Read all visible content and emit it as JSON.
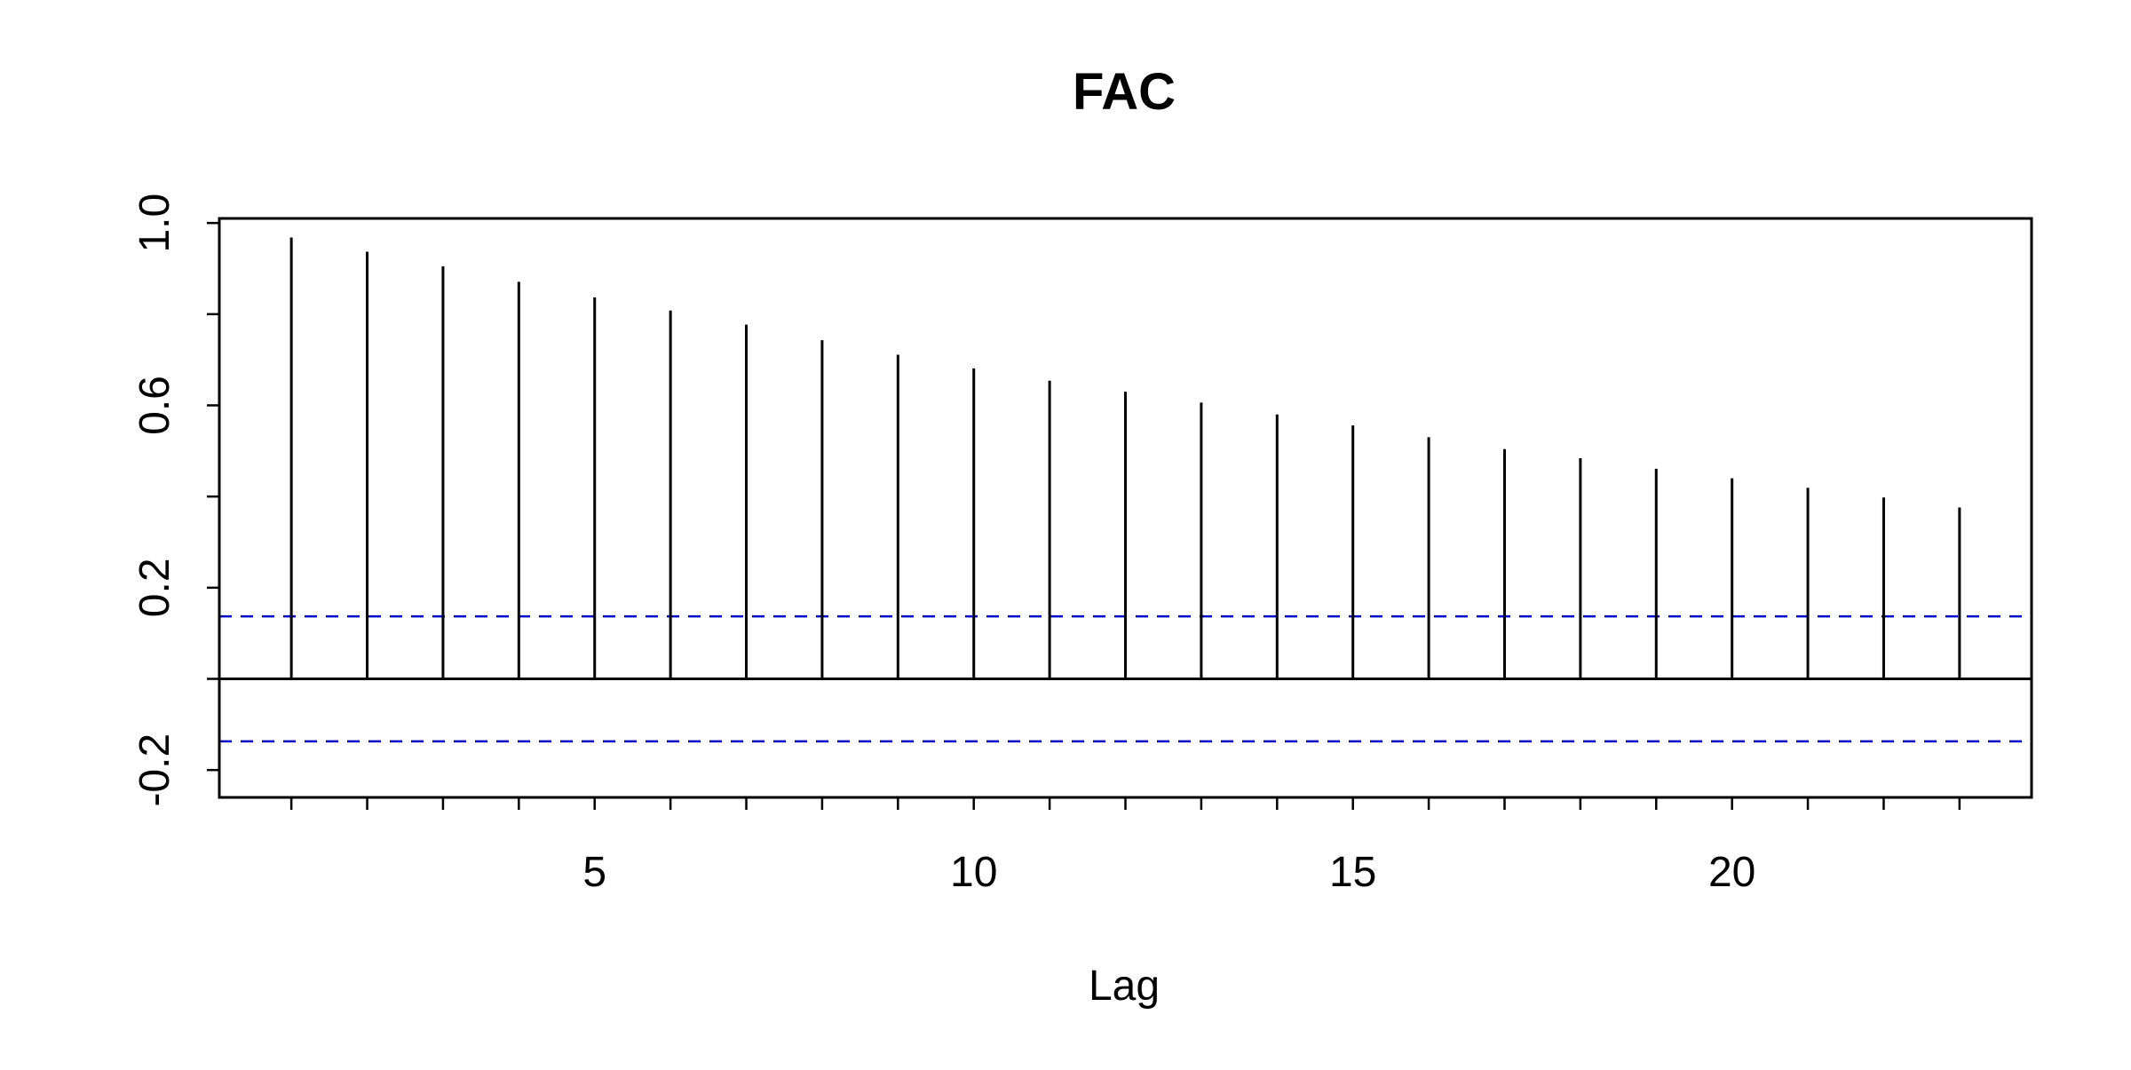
{
  "chart_data": {
    "type": "bar",
    "title": "FAC",
    "xlabel": "Lag",
    "ylabel": "",
    "x": [
      1,
      2,
      3,
      4,
      5,
      6,
      7,
      8,
      9,
      10,
      11,
      12,
      13,
      14,
      15,
      16,
      17,
      18,
      19,
      20,
      21,
      22,
      23
    ],
    "values": [
      0.968,
      0.937,
      0.905,
      0.871,
      0.837,
      0.808,
      0.777,
      0.743,
      0.711,
      0.681,
      0.654,
      0.63,
      0.606,
      0.58,
      0.556,
      0.53,
      0.504,
      0.484,
      0.461,
      0.44,
      0.419,
      0.398,
      0.376
    ],
    "confidence_band": 0.137,
    "xlim": [
      0.05,
      23.95
    ],
    "ylim": [
      -0.26,
      1.01
    ],
    "xticks": [
      1,
      2,
      3,
      4,
      5,
      6,
      7,
      8,
      9,
      10,
      11,
      12,
      13,
      14,
      15,
      16,
      17,
      18,
      19,
      20,
      21,
      22,
      23
    ],
    "xtick_labels": [
      {
        "value": 5,
        "label": "5"
      },
      {
        "value": 10,
        "label": "10"
      },
      {
        "value": 15,
        "label": "15"
      },
      {
        "value": 20,
        "label": "20"
      }
    ],
    "yticks": [
      -0.2,
      0.0,
      0.2,
      0.4,
      0.6,
      0.8,
      1.0
    ],
    "ytick_labels": [
      {
        "value": -0.2,
        "label": "-0.2"
      },
      {
        "value": 0.2,
        "label": "0.2"
      },
      {
        "value": 0.6,
        "label": "0.6"
      },
      {
        "value": 1.0,
        "label": "1.0"
      }
    ],
    "grid": false,
    "colors": {
      "bars": "#000000",
      "zero_line": "#000000",
      "confidence": "#0000cc"
    }
  }
}
